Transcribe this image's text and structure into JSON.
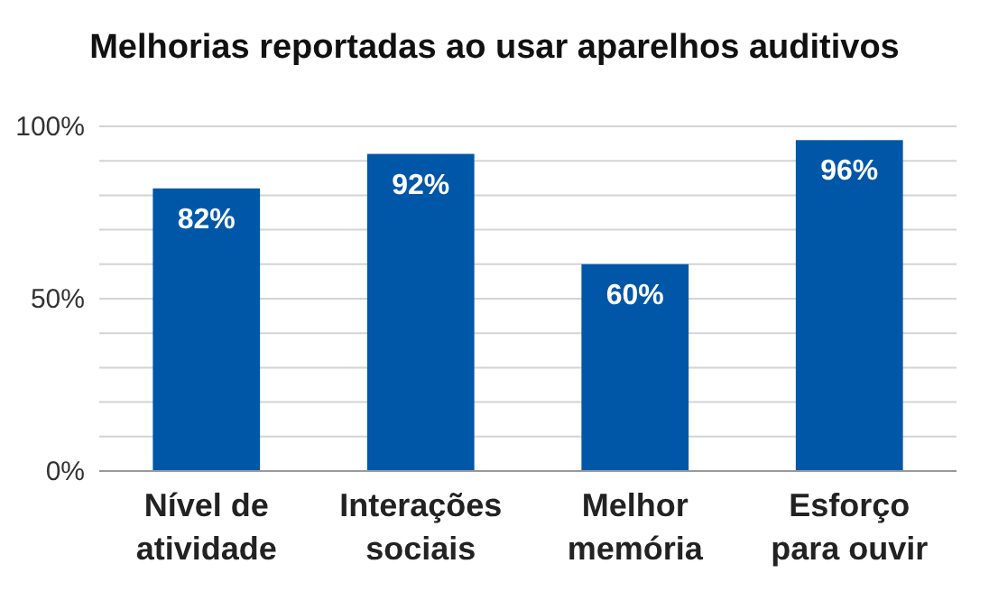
{
  "chart_data": {
    "type": "bar",
    "title": "Melhorias reportadas ao usar aparelhos auditivos",
    "categories": [
      "Nível de atividade",
      "Interações sociais",
      "Melhor memória",
      "Esforço para ouvir"
    ],
    "values": [
      82,
      92,
      60,
      96
    ],
    "color": "#0057a8",
    "ylim": [
      0,
      100
    ],
    "yticks": [
      {
        "value": 0,
        "label": "0%"
      },
      {
        "value": 10,
        "label": null
      },
      {
        "value": 20,
        "label": null
      },
      {
        "value": 30,
        "label": null
      },
      {
        "value": 40,
        "label": null
      },
      {
        "value": 50,
        "label": "50%"
      },
      {
        "value": 60,
        "label": null
      },
      {
        "value": 70,
        "label": null
      },
      {
        "value": 80,
        "label": null
      },
      {
        "value": 90,
        "label": null
      },
      {
        "value": 100,
        "label": "100%"
      }
    ],
    "value_labels": [
      "82%",
      "92%",
      "60%",
      "96%"
    ],
    "grid": "y"
  }
}
